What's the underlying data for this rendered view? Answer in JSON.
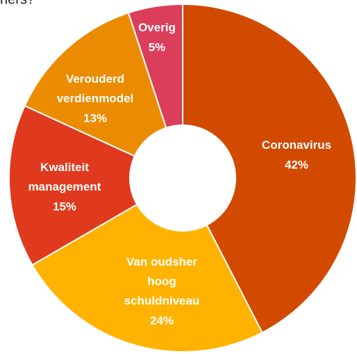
{
  "chart_data": {
    "type": "donut",
    "title": "ners?",
    "categories": [
      "Coronavirus",
      "Van oudsher hoog schuldniveau",
      "Kwaliteit management",
      "Verouderd verdienmodel",
      "Overig"
    ],
    "values": [
      42,
      24,
      15,
      13,
      5
    ],
    "value_labels": [
      "42%",
      "24%",
      "15%",
      "13%",
      "5%"
    ],
    "colors": [
      "#d24a00",
      "#ffb300",
      "#e03a1e",
      "#eb8c00",
      "#db3e5a"
    ]
  }
}
